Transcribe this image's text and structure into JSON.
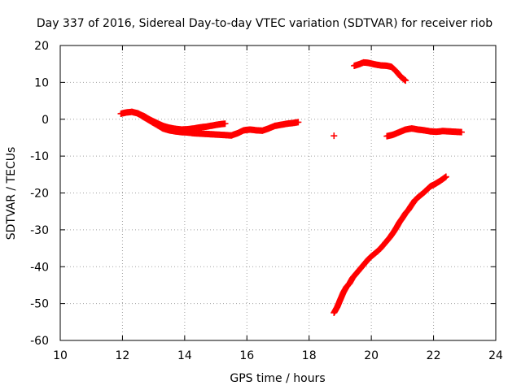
{
  "chart_data": {
    "type": "scatter",
    "title": "Day 337 of 2016, Sidereal Day-to-day VTEC variation (SDTVAR) for receiver riob",
    "xlabel": "GPS time / hours",
    "ylabel": "SDTVAR / TECUs",
    "xlim": [
      10,
      24
    ],
    "ylim": [
      -60,
      20
    ],
    "x_ticks": [
      "10",
      "12",
      "14",
      "16",
      "18",
      "20",
      "22",
      "24"
    ],
    "y_ticks": [
      "20",
      "10",
      "0",
      "-10",
      "-20",
      "-30",
      "-40",
      "-50",
      "-60"
    ],
    "grid": true,
    "marker": "+",
    "color": "#ff0000",
    "series": [
      {
        "points": [
          [
            11.95,
            1.5
          ],
          [
            12.1,
            1.8
          ],
          [
            12.3,
            2.0
          ],
          [
            12.5,
            1.6
          ],
          [
            12.7,
            0.5
          ],
          [
            12.9,
            -0.5
          ],
          [
            13.1,
            -1.5
          ],
          [
            13.3,
            -2.5
          ],
          [
            13.5,
            -3.0
          ],
          [
            13.7,
            -3.3
          ],
          [
            13.9,
            -3.5
          ],
          [
            14.1,
            -3.6
          ],
          [
            14.3,
            -3.8
          ],
          [
            14.5,
            -3.9
          ],
          [
            14.7,
            -4.0
          ],
          [
            14.9,
            -4.1
          ],
          [
            15.1,
            -4.2
          ],
          [
            15.3,
            -4.3
          ],
          [
            15.5,
            -4.4
          ],
          [
            15.7,
            -3.8
          ],
          [
            15.9,
            -3.0
          ],
          [
            16.1,
            -2.8
          ],
          [
            16.3,
            -3.0
          ],
          [
            16.5,
            -3.1
          ],
          [
            16.7,
            -2.5
          ],
          [
            16.9,
            -1.8
          ],
          [
            17.1,
            -1.5
          ],
          [
            17.3,
            -1.2
          ],
          [
            17.5,
            -1.0
          ],
          [
            17.65,
            -0.8
          ]
        ]
      },
      {
        "points": [
          [
            12.5,
            1.5
          ],
          [
            12.7,
            0.8
          ],
          [
            12.9,
            -0.2
          ],
          [
            13.1,
            -1.0
          ],
          [
            13.3,
            -1.8
          ],
          [
            13.5,
            -2.3
          ],
          [
            13.7,
            -2.6
          ],
          [
            13.9,
            -2.8
          ],
          [
            14.1,
            -2.7
          ],
          [
            14.3,
            -2.5
          ],
          [
            14.5,
            -2.2
          ],
          [
            14.7,
            -2.0
          ],
          [
            14.9,
            -1.7
          ],
          [
            15.1,
            -1.4
          ],
          [
            15.3,
            -1.2
          ]
        ]
      },
      {
        "points": [
          [
            18.8,
            -4.5
          ]
        ]
      },
      {
        "points": [
          [
            19.45,
            14.5
          ],
          [
            19.6,
            14.9
          ],
          [
            19.75,
            15.4
          ],
          [
            19.9,
            15.3
          ],
          [
            20.1,
            14.9
          ],
          [
            20.3,
            14.6
          ],
          [
            20.5,
            14.5
          ],
          [
            20.65,
            14.2
          ],
          [
            20.8,
            13.0
          ],
          [
            20.95,
            11.5
          ],
          [
            21.1,
            10.5
          ]
        ]
      },
      {
        "points": [
          [
            20.5,
            -4.6
          ],
          [
            20.7,
            -4.2
          ],
          [
            20.9,
            -3.5
          ],
          [
            21.1,
            -2.8
          ],
          [
            21.3,
            -2.5
          ],
          [
            21.5,
            -2.8
          ],
          [
            21.7,
            -3.0
          ],
          [
            21.9,
            -3.3
          ],
          [
            22.1,
            -3.4
          ],
          [
            22.3,
            -3.2
          ],
          [
            22.5,
            -3.3
          ],
          [
            22.7,
            -3.4
          ],
          [
            22.9,
            -3.5
          ]
        ]
      },
      {
        "points": [
          [
            18.8,
            -52.5
          ],
          [
            18.9,
            -51.0
          ],
          [
            19.0,
            -49.0
          ],
          [
            19.1,
            -47.0
          ],
          [
            19.2,
            -45.5
          ],
          [
            19.3,
            -44.5
          ],
          [
            19.4,
            -43.0
          ],
          [
            19.5,
            -42.0
          ],
          [
            19.6,
            -41.0
          ],
          [
            19.7,
            -40.0
          ],
          [
            19.8,
            -39.0
          ],
          [
            19.9,
            -38.0
          ],
          [
            20.0,
            -37.2
          ],
          [
            20.1,
            -36.5
          ],
          [
            20.2,
            -35.8
          ],
          [
            20.3,
            -35.0
          ],
          [
            20.4,
            -34.0
          ],
          [
            20.5,
            -33.0
          ],
          [
            20.6,
            -32.0
          ],
          [
            20.7,
            -30.8
          ],
          [
            20.8,
            -29.5
          ],
          [
            20.9,
            -28.0
          ],
          [
            21.0,
            -26.8
          ],
          [
            21.1,
            -25.5
          ],
          [
            21.2,
            -24.5
          ],
          [
            21.3,
            -23.2
          ],
          [
            21.4,
            -22.0
          ],
          [
            21.5,
            -21.2
          ],
          [
            21.6,
            -20.5
          ],
          [
            21.7,
            -19.8
          ],
          [
            21.8,
            -19.0
          ],
          [
            21.9,
            -18.2
          ],
          [
            22.0,
            -17.8
          ],
          [
            22.1,
            -17.3
          ],
          [
            22.2,
            -16.8
          ],
          [
            22.3,
            -16.2
          ],
          [
            22.4,
            -15.6
          ]
        ]
      }
    ]
  }
}
